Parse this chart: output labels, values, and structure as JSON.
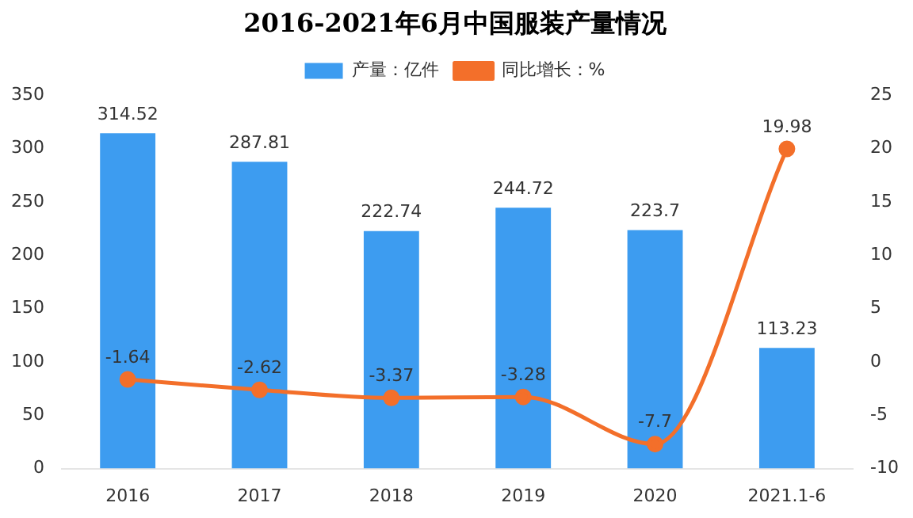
{
  "chart_data": {
    "type": "bar",
    "title": "2016-2021年6月中国服装产量情况",
    "categories": [
      "2016",
      "2017",
      "2018",
      "2019",
      "2020",
      "2021.1-6"
    ],
    "series": [
      {
        "name": "产量：亿件",
        "color": "#3d9cf0",
        "values": [
          314.52,
          287.81,
          222.74,
          244.72,
          223.7,
          113.23
        ]
      },
      {
        "name": "同比增长：%",
        "type": "line",
        "axis": "y2",
        "color": "#f36f2a",
        "values": [
          -1.64,
          -2.62,
          -3.37,
          -3.28,
          -7.7,
          19.98
        ]
      }
    ],
    "ylim": [
      0,
      350
    ],
    "yticks": [
      0,
      50,
      100,
      150,
      200,
      250,
      300,
      350
    ],
    "y2lim": [
      -10,
      25
    ],
    "y2ticks": [
      -10,
      -5,
      0,
      5,
      10,
      15,
      20,
      25
    ],
    "legend": "top",
    "marker": "circle",
    "data_labels": true
  }
}
